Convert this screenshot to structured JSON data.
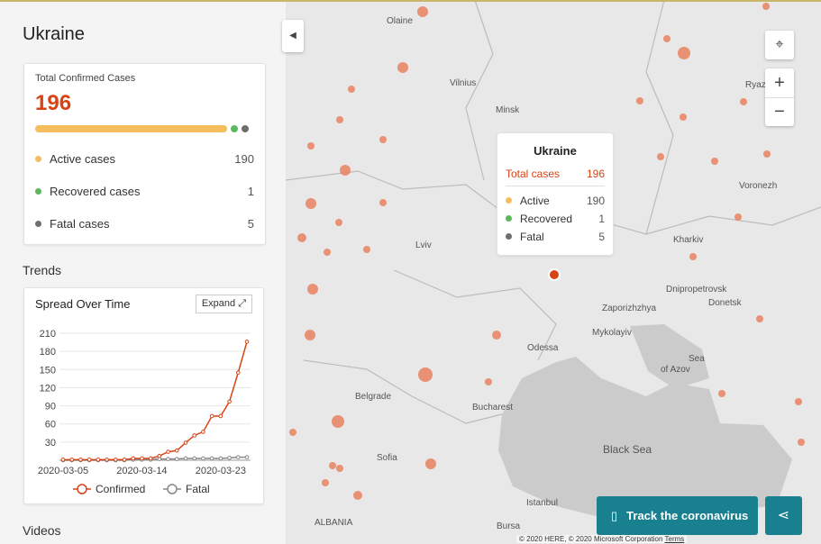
{
  "panel": {
    "title": "Ukraine",
    "summary": {
      "label": "Total Confirmed Cases",
      "total": 196,
      "items": [
        {
          "name": "Active cases",
          "value": 190,
          "color": "#f4be5c"
        },
        {
          "name": "Recovered cases",
          "value": 1,
          "color": "#5cb85c"
        },
        {
          "name": "Fatal cases",
          "value": 5,
          "color": "#6e6e6e"
        }
      ]
    },
    "trends_heading": "Trends",
    "expand": "Expand",
    "videos_heading": "Videos"
  },
  "chart_data": {
    "type": "line",
    "title": "Spread Over Time",
    "categories": [
      "2020-03-05",
      "2020-03-06",
      "2020-03-07",
      "2020-03-08",
      "2020-03-09",
      "2020-03-10",
      "2020-03-11",
      "2020-03-12",
      "2020-03-13",
      "2020-03-14",
      "2020-03-15",
      "2020-03-16",
      "2020-03-17",
      "2020-03-18",
      "2020-03-19",
      "2020-03-20",
      "2020-03-21",
      "2020-03-22",
      "2020-03-23",
      "2020-03-24",
      "2020-03-25",
      "2020-03-26"
    ],
    "xtick_indices": [
      0,
      9,
      18
    ],
    "series": [
      {
        "name": "Confirmed",
        "color": "#d84315",
        "values": [
          1,
          1,
          1,
          1,
          1,
          1,
          1,
          1,
          3,
          3,
          3,
          7,
          14,
          16,
          29,
          41,
          47,
          73,
          73,
          97,
          145,
          196
        ]
      },
      {
        "name": "Fatal",
        "color": "#888888",
        "values": [
          0,
          0,
          0,
          0,
          0,
          0,
          0,
          0,
          1,
          1,
          1,
          2,
          2,
          2,
          3,
          3,
          3,
          3,
          3,
          4,
          5,
          5
        ]
      }
    ],
    "ylim": [
      0,
      210
    ],
    "yticks": [
      30,
      60,
      90,
      120,
      150,
      180,
      210
    ],
    "grid": true
  },
  "tooltip": {
    "title": "Ukraine",
    "total_label": "Total cases",
    "total": 196,
    "rows": [
      {
        "name": "Active",
        "value": 190,
        "color": "#f4be5c"
      },
      {
        "name": "Recovered",
        "value": 1,
        "color": "#5cb85c"
      },
      {
        "name": "Fatal",
        "value": 5,
        "color": "#6e6e6e"
      }
    ]
  },
  "map": {
    "labels": [
      [
        "Olaine",
        429,
        22
      ],
      [
        "Vilnius",
        499,
        91
      ],
      [
        "Minsk",
        550,
        121
      ],
      [
        "Ryazan",
        827,
        93
      ],
      [
        "Voronezh",
        820,
        205
      ],
      [
        "Kharkiv",
        747,
        265
      ],
      [
        "Lviv",
        461,
        271
      ],
      [
        "Dnipropetrovsk",
        739,
        320
      ],
      [
        "Donetsk",
        786,
        335
      ],
      [
        "Zaporizhzhya",
        668,
        341
      ],
      [
        "Mykolayiv",
        657,
        368
      ],
      [
        "Odessa",
        585,
        385
      ],
      [
        "Sea",
        764,
        397
      ],
      [
        "of Azov",
        733,
        409
      ],
      [
        "Belgrade",
        394,
        439
      ],
      [
        "Bucharest",
        524,
        451
      ],
      [
        "Black Sea",
        669,
        499
      ],
      [
        "Sofia",
        418,
        507
      ],
      [
        "Istanbul",
        584,
        557
      ],
      [
        "Bursa",
        551,
        583
      ],
      [
        "ALBANIA",
        349,
        579
      ]
    ],
    "track_button": "Track the coronavirus",
    "attribution": "© 2020 HERE, © 2020 Microsoft Corporation",
    "terms": "Terms"
  }
}
